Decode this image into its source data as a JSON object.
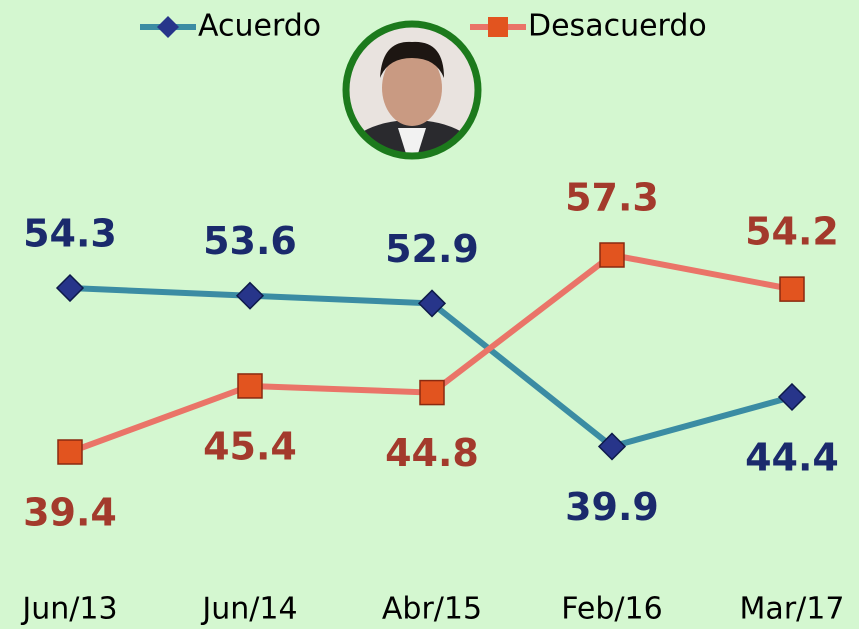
{
  "chart_data": {
    "type": "line",
    "categories": [
      "Jun/13",
      "Jun/14",
      "Abr/15",
      "Feb/16",
      "Mar/17"
    ],
    "series": [
      {
        "name": "Acuerdo",
        "color": "#3b8ca3",
        "values": [
          54.3,
          53.6,
          52.9,
          39.9,
          44.4
        ]
      },
      {
        "name": "Desacuerdo",
        "color": "#ea7468",
        "values": [
          39.4,
          45.4,
          44.8,
          57.3,
          54.2
        ]
      }
    ]
  }
}
